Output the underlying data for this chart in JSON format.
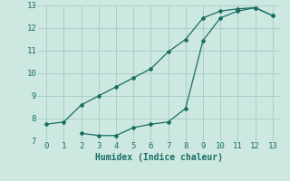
{
  "xlabel": "Humidex (Indice chaleur)",
  "bg_color": "#cce8e0",
  "grid_color": "#aacfc8",
  "line_color": "#1a6e64",
  "xlim": [
    -0.5,
    13.5
  ],
  "ylim": [
    7,
    13
  ],
  "xticks": [
    0,
    1,
    2,
    3,
    4,
    5,
    6,
    7,
    8,
    9,
    10,
    11,
    12,
    13
  ],
  "yticks": [
    7,
    8,
    9,
    10,
    11,
    12,
    13
  ],
  "curve1_x": [
    0,
    1,
    2,
    3,
    4,
    5,
    6,
    7,
    8,
    9,
    10,
    11,
    12,
    13
  ],
  "curve1_y": [
    7.75,
    7.85,
    8.6,
    9.0,
    9.4,
    9.8,
    10.2,
    10.95,
    11.5,
    12.45,
    12.75,
    12.85,
    12.9,
    12.55
  ],
  "curve2_x": [
    2,
    3,
    4,
    5,
    6,
    7,
    8,
    9,
    10,
    11,
    12,
    13
  ],
  "curve2_y": [
    7.35,
    7.25,
    7.25,
    7.6,
    7.75,
    7.85,
    8.45,
    11.45,
    12.45,
    12.75,
    12.9,
    12.55
  ],
  "xlabel_fontsize": 7,
  "tick_fontsize": 6.5
}
